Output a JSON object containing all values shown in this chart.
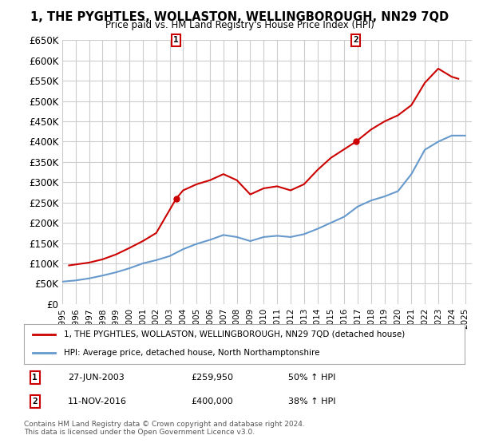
{
  "title": "1, THE PYGHTLES, WOLLASTON, WELLINGBOROUGH, NN29 7QD",
  "subtitle": "Price paid vs. HM Land Registry's House Price Index (HPI)",
  "ylabel": "",
  "ylim": [
    0,
    650000
  ],
  "yticks": [
    0,
    50000,
    100000,
    150000,
    200000,
    250000,
    300000,
    350000,
    400000,
    450000,
    500000,
    550000,
    600000,
    650000
  ],
  "ytick_labels": [
    "£0",
    "£50K",
    "£100K",
    "£150K",
    "£200K",
    "£250K",
    "£300K",
    "£350K",
    "£400K",
    "£450K",
    "£500K",
    "£550K",
    "£600K",
    "£650K"
  ],
  "xlim_start": 1995.0,
  "xlim_end": 2025.5,
  "background_color": "#ffffff",
  "plot_bg_color": "#ffffff",
  "grid_color": "#cccccc",
  "red_color": "#cc0000",
  "blue_color": "#6699cc",
  "sale1_x": 2003.49,
  "sale1_y": 259950,
  "sale2_x": 2016.87,
  "sale2_y": 400000,
  "legend_red_label": "1, THE PYGHTLES, WOLLASTON, WELLINGBOROUGH, NN29 7QD (detached house)",
  "legend_blue_label": "HPI: Average price, detached house, North Northamptonshire",
  "table_row1": [
    "1",
    "27-JUN-2003",
    "£259,950",
    "50% ↑ HPI"
  ],
  "table_row2": [
    "2",
    "11-NOV-2016",
    "£400,000",
    "38% ↑ HPI"
  ],
  "footer": "Contains HM Land Registry data © Crown copyright and database right 2024.\nThis data is licensed under the Open Government Licence v3.0.",
  "hpi_years": [
    1995,
    1996,
    1997,
    1998,
    1999,
    2000,
    2001,
    2002,
    2003,
    2004,
    2005,
    2006,
    2007,
    2008,
    2009,
    2010,
    2011,
    2012,
    2013,
    2014,
    2015,
    2016,
    2017,
    2018,
    2019,
    2020,
    2021,
    2022,
    2023,
    2024,
    2025
  ],
  "hpi_values": [
    55000,
    58000,
    63000,
    70000,
    78000,
    88000,
    100000,
    108000,
    118000,
    135000,
    148000,
    158000,
    170000,
    165000,
    155000,
    165000,
    168000,
    165000,
    172000,
    185000,
    200000,
    215000,
    240000,
    255000,
    265000,
    278000,
    320000,
    380000,
    400000,
    415000,
    415000
  ],
  "property_years": [
    1995.5,
    1997,
    1998,
    1999,
    2000,
    2001,
    2002,
    2003.49,
    2004,
    2005,
    2006,
    2007,
    2008,
    2009,
    2010,
    2011,
    2012,
    2013,
    2014,
    2015,
    2016.87,
    2018,
    2019,
    2020,
    2021,
    2022,
    2023,
    2024,
    2024.5
  ],
  "property_values": [
    95000,
    102000,
    110000,
    122000,
    138000,
    155000,
    175000,
    259950,
    280000,
    295000,
    305000,
    320000,
    305000,
    270000,
    285000,
    290000,
    280000,
    295000,
    330000,
    360000,
    400000,
    430000,
    450000,
    465000,
    490000,
    545000,
    580000,
    560000,
    555000
  ]
}
